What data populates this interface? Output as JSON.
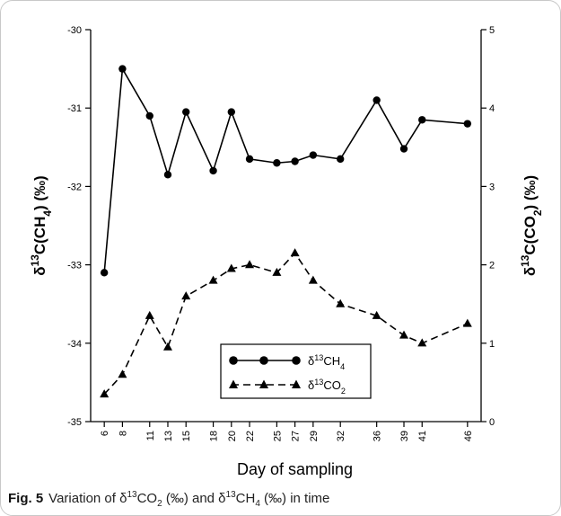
{
  "chart_data": {
    "type": "line",
    "xlabel": "Day of sampling",
    "ylabel": "δ13C(CH4) (‰)",
    "ylabel_right": "δ13C(CO2) (‰)",
    "x_ticks": [
      6,
      8,
      11,
      13,
      15,
      18,
      20,
      22,
      25,
      27,
      29,
      32,
      36,
      39,
      41,
      46
    ],
    "ylim": [
      -35,
      -30
    ],
    "ylim_right": [
      0,
      5
    ],
    "y_ticks": [
      -35,
      -34,
      -33,
      -32,
      -31,
      -30
    ],
    "y_ticks_right": [
      0,
      1,
      2,
      3,
      4,
      5
    ],
    "grid": false,
    "legend_position": "bottom-center",
    "series": [
      {
        "name": "δ13CH4",
        "axis": "left",
        "marker": "circle",
        "line_style": "solid",
        "color": "#000000",
        "x": [
          6,
          8,
          11,
          13,
          15,
          18,
          20,
          22,
          25,
          27,
          29,
          32,
          36,
          39,
          41,
          46
        ],
        "y": [
          -33.1,
          -30.5,
          -31.1,
          -31.85,
          -31.05,
          -31.8,
          -31.05,
          -31.65,
          -31.7,
          -31.68,
          -31.6,
          -31.65,
          -30.9,
          -31.52,
          -31.15,
          -31.2
        ]
      },
      {
        "name": "δ13CO2",
        "axis": "right",
        "marker": "triangle",
        "line_style": "dashed",
        "color": "#000000",
        "x": [
          6,
          8,
          11,
          13,
          15,
          18,
          20,
          22,
          25,
          27,
          29,
          32,
          36,
          39,
          41,
          46
        ],
        "y": [
          0.35,
          0.6,
          1.35,
          0.95,
          1.6,
          1.8,
          1.95,
          2.0,
          1.9,
          2.15,
          1.8,
          1.5,
          1.35,
          1.1,
          1.0,
          1.25
        ]
      }
    ]
  },
  "caption": {
    "label": "Fig. 5",
    "text": "Variation of δ13CO2 (‰) and δ13CH4 (‰) in time"
  }
}
